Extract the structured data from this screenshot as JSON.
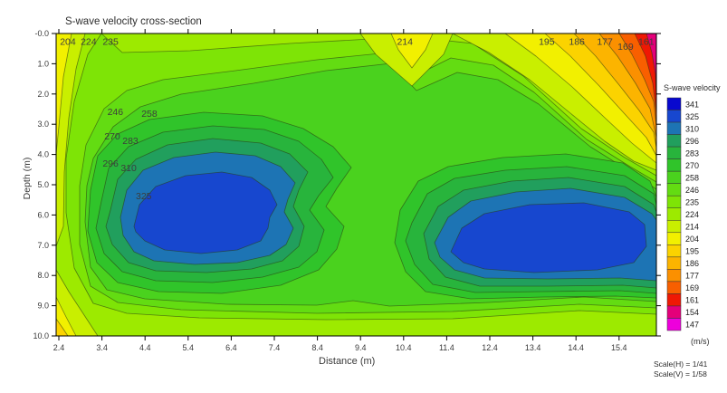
{
  "title": "S-wave velocity cross-section",
  "axes": {
    "x_label": "Distance (m)",
    "x_ticks": [
      "2.4",
      "3.4",
      "4.4",
      "5.4",
      "6.4",
      "7.4",
      "8.4",
      "9.4",
      "10.4",
      "11.4",
      "12.4",
      "13.4",
      "14.4",
      "15.4"
    ],
    "y_label": "Depth (m)",
    "y_ticks": [
      "-0.0",
      "1.0",
      "2.0",
      "3.0",
      "4.0",
      "5.0",
      "6.0",
      "7.0",
      "8.0",
      "9.0",
      "10.0"
    ]
  },
  "colorbar": {
    "title": "S-wave velocity",
    "unit": "(m/s)",
    "levels": [
      "341",
      "325",
      "310",
      "296",
      "283",
      "270",
      "258",
      "246",
      "235",
      "224",
      "214",
      "204",
      "195",
      "186",
      "177",
      "169",
      "161",
      "154",
      "147"
    ],
    "colors": {
      "341": "#0808cf",
      "325": "#1747cf",
      "310": "#1d74b4",
      "296": "#219f5d",
      "283": "#28b43c",
      "270": "#30c42a",
      "258": "#4ad21e",
      "246": "#63dc12",
      "235": "#7ee406",
      "224": "#9dea00",
      "214": "#c9ef00",
      "204": "#f2f000",
      "195": "#fbd300",
      "186": "#fcb400",
      "177": "#fb9000",
      "169": "#f85f00",
      "161": "#ef1804",
      "154": "#e4007a",
      "147": "#ee00dc"
    }
  },
  "notes": {
    "scale_h": "Scale(H) = 1/41",
    "scale_v": "Scale(V) = 1/58"
  },
  "chart_data": {
    "type": "heatmap",
    "subtype": "filled contour cross-section",
    "title": "S-wave velocity cross-section",
    "xlabel": "Distance (m)",
    "ylabel": "Depth (m)",
    "value_label": "S-wave velocity",
    "unit": "m/s",
    "x_range": [
      2.35,
      16.3
    ],
    "depth_range": [
      0,
      10
    ],
    "y_axis_inverted": true,
    "grid": false,
    "legend_position": "right",
    "contour_levels": [
      147,
      154,
      161,
      169,
      177,
      186,
      195,
      204,
      214,
      224,
      235,
      246,
      258,
      270,
      283,
      296,
      310,
      325,
      341
    ],
    "features": [
      "near-surface low-velocity zone (<154 m/s, magenta) at top-right corner around x=16.2 m, depth 0-2 m, grading 161-214 m/s outward",
      "thin low-velocity bands (195-224 m/s, yellow) along left edge near surface and at bottom-left corner",
      "small 204-214 m/s notch at surface near x=10.4 m",
      "background 224-258 m/s (yellow-green to green) near surface and below depth 9 m",
      "left high-velocity anomaly: concentric 246-341 m/s rings centered near x=4.6 m, depth 6.2 m, blue core >325 m/s",
      "right high-velocity anomaly: elongated 270-341 m/s body from x=11.4 to 16.2 m, depth 6-8 m, blue core >325 m/s",
      "green saddle (~258-270 m/s) separating the two anomalies near x=8.9-9.4 m"
    ],
    "contour_labels": [
      {
        "value": "204",
        "x": 2.61,
        "d": 0.26
      },
      {
        "value": "224",
        "x": 3.09,
        "d": 0.26
      },
      {
        "value": "235",
        "x": 3.6,
        "d": 0.26
      },
      {
        "value": "214",
        "x": 10.43,
        "d": 0.26
      },
      {
        "value": "195",
        "x": 13.72,
        "d": 0.26
      },
      {
        "value": "186",
        "x": 14.42,
        "d": 0.26
      },
      {
        "value": "177",
        "x": 15.07,
        "d": 0.26
      },
      {
        "value": "169",
        "x": 15.55,
        "d": 0.42
      },
      {
        "value": "161",
        "x": 16.03,
        "d": 0.26
      },
      {
        "value": "246",
        "x": 3.71,
        "d": 2.57
      },
      {
        "value": "258",
        "x": 4.5,
        "d": 2.63
      },
      {
        "value": "270",
        "x": 3.64,
        "d": 3.38
      },
      {
        "value": "283",
        "x": 4.06,
        "d": 3.53
      },
      {
        "value": "296",
        "x": 3.6,
        "d": 4.28
      },
      {
        "value": "310",
        "x": 4.02,
        "d": 4.43
      },
      {
        "value": "325",
        "x": 4.37,
        "d": 5.36
      }
    ]
  }
}
